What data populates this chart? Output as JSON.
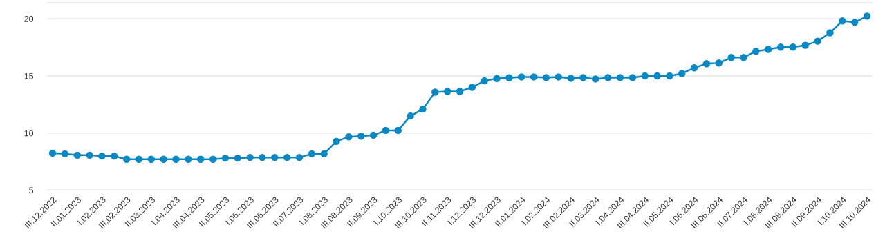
{
  "chart_data": {
    "type": "line",
    "categories": [
      "III.12.2022",
      null,
      "II.01.2023",
      null,
      "I.02.2023",
      null,
      "III.02.2023",
      null,
      "II.03.2023",
      null,
      "I.04.2023",
      null,
      "III.04.2023",
      null,
      "II.05.2023",
      null,
      "I.06.2023",
      null,
      "III.06.2023",
      null,
      "II.07.2023",
      null,
      "I.08.2023",
      null,
      "III.08.2023",
      null,
      "II.09.2023",
      null,
      "I.10.2023",
      null,
      "III.10.2023",
      null,
      "II.11.2023",
      null,
      "I.12.2023",
      null,
      "III.12.2023",
      null,
      "II.01.2024",
      null,
      "I.02.2024",
      null,
      "III.02.2024",
      null,
      "II.03.2024",
      null,
      "I.04.2024",
      null,
      "III.04.2024",
      null,
      "II.05.2024",
      null,
      "I.06.2024",
      null,
      "III.06.2024",
      null,
      "II.07.2024",
      null,
      "I.08.2024",
      null,
      "III.08.2024",
      null,
      "II.09.2024",
      null,
      "I.10.2024",
      null,
      "III.10.2024"
    ],
    "series": [
      {
        "color": "#0a88c4",
        "values": [
          8.24,
          8.18,
          8.06,
          8.06,
          7.98,
          7.98,
          7.7,
          7.7,
          7.7,
          7.7,
          7.7,
          7.7,
          7.7,
          7.7,
          7.8,
          7.8,
          7.86,
          7.86,
          7.86,
          7.86,
          7.86,
          8.18,
          8.18,
          9.27,
          9.67,
          9.73,
          9.81,
          10.23,
          10.23,
          11.49,
          12.09,
          13.58,
          13.64,
          13.64,
          14.0,
          14.57,
          14.77,
          14.83,
          14.91,
          14.91,
          14.85,
          14.91,
          14.79,
          14.85,
          14.73,
          14.85,
          14.85,
          14.85,
          15.0,
          15.0,
          15.0,
          15.21,
          15.71,
          16.07,
          16.13,
          16.61,
          16.61,
          17.16,
          17.32,
          17.52,
          17.52,
          17.68,
          18.04,
          18.77,
          19.81,
          19.69,
          20.23
        ]
      }
    ],
    "ylim": [
      5,
      21.4
    ],
    "yticks": [
      5,
      10,
      15,
      20
    ],
    "grid": "y",
    "marker": "circle",
    "line_style": "solid",
    "legend": false
  }
}
